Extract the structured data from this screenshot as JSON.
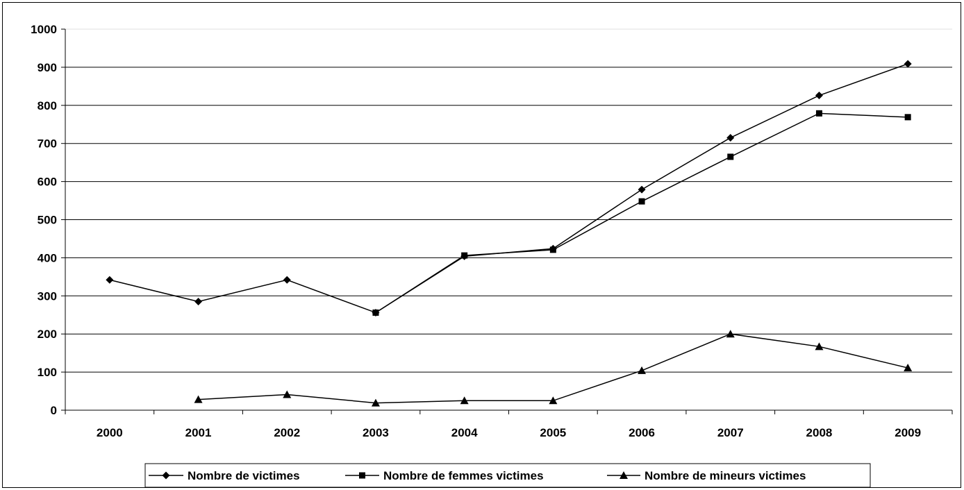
{
  "chart_data": {
    "type": "line",
    "title": "",
    "xlabel": "",
    "ylabel": "",
    "categories": [
      "2000",
      "2001",
      "2002",
      "2003",
      "2004",
      "2005",
      "2006",
      "2007",
      "2008",
      "2009"
    ],
    "ylim": [
      0,
      1000
    ],
    "yticks": [
      0,
      100,
      200,
      300,
      400,
      500,
      600,
      700,
      800,
      900,
      1000
    ],
    "grid": "horizontal",
    "legend_position": "bottom",
    "series": [
      {
        "name": "Nombre de victimes",
        "marker": "diamond",
        "values": [
          342,
          285,
          342,
          256,
          404,
          424,
          579,
          715,
          826,
          909
        ]
      },
      {
        "name": "Nombre de femmes victimes",
        "marker": "square",
        "values": [
          null,
          null,
          null,
          256,
          406,
          421,
          548,
          665,
          779,
          769
        ]
      },
      {
        "name": "Nombre de mineurs victimes",
        "marker": "triangle",
        "values": [
          null,
          28,
          41,
          19,
          25,
          25,
          104,
          200,
          167,
          111
        ]
      }
    ],
    "colors": {
      "line": "#000000",
      "grid": "#000000",
      "background": "#ffffff"
    }
  }
}
